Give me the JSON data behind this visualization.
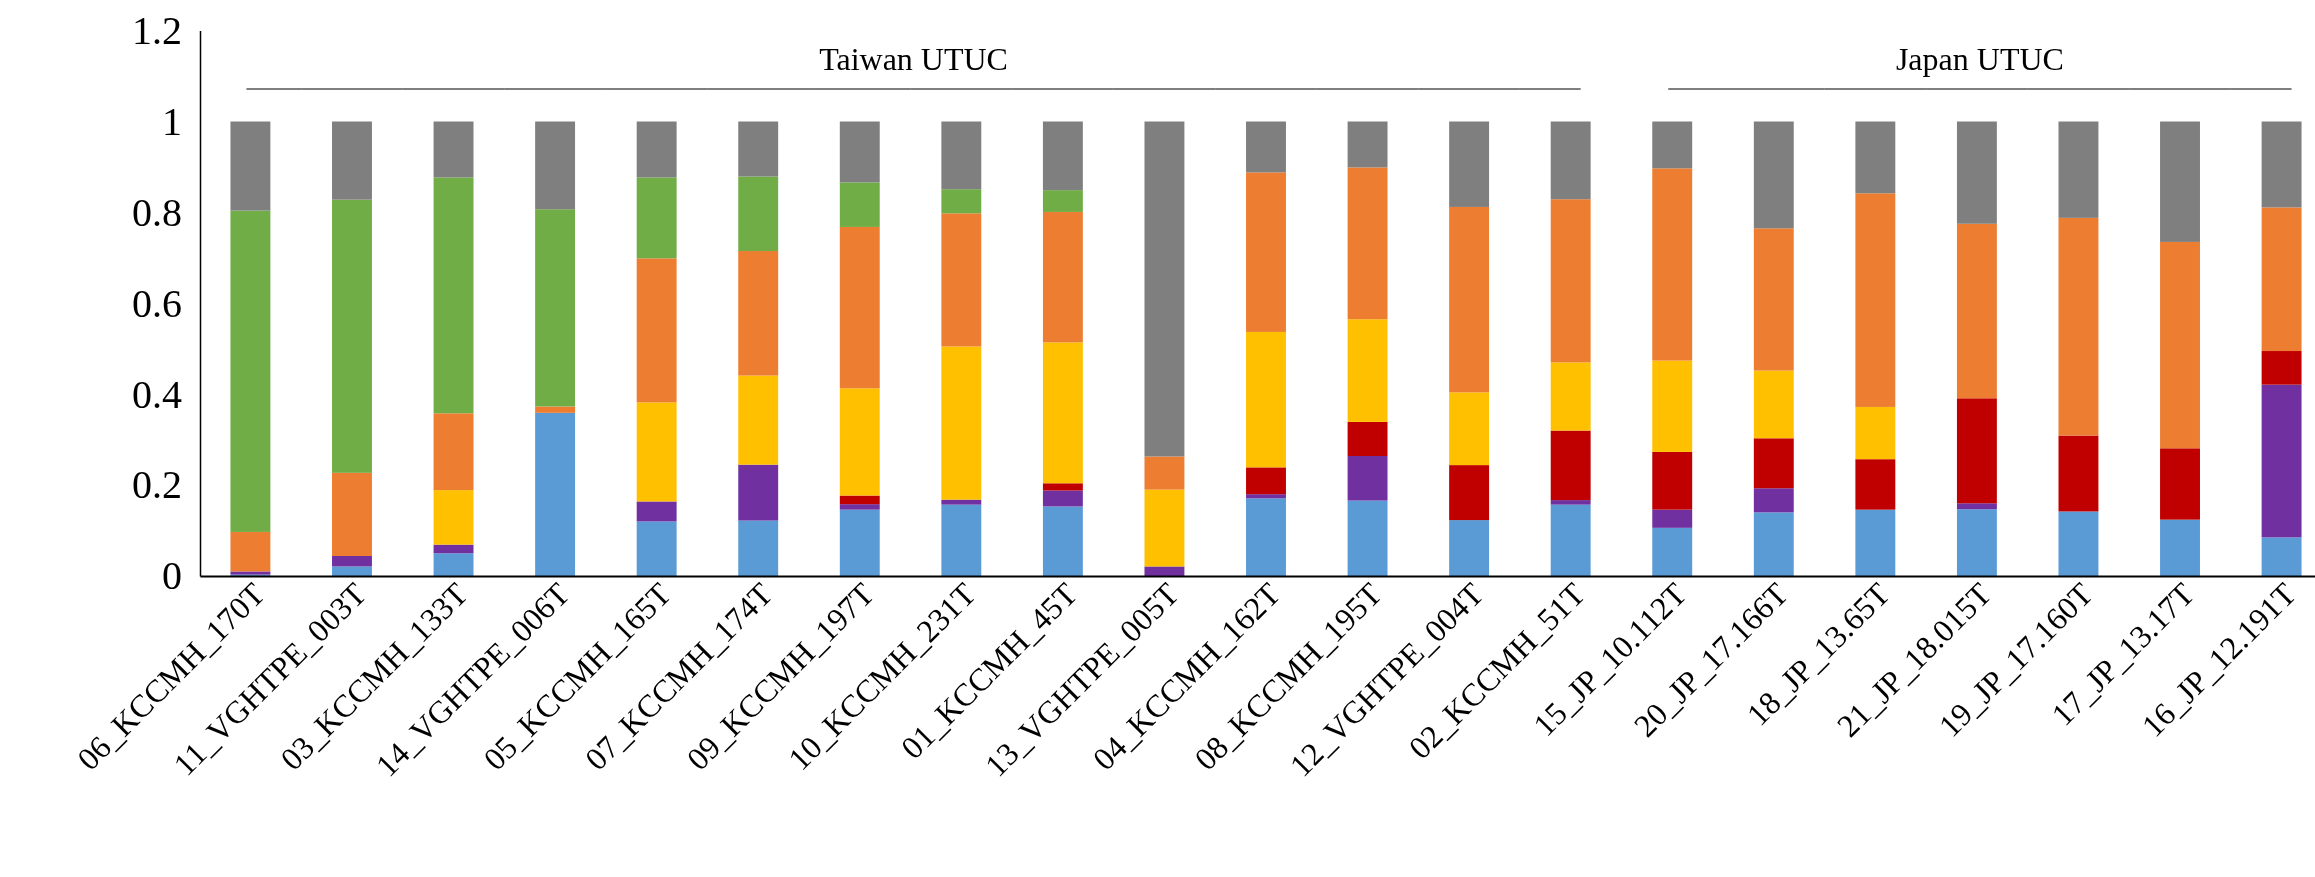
{
  "chart_data": {
    "type": "bar",
    "stacked": true,
    "categories": [
      "06_KCCMH_170T",
      "11_VGHTPE_003T",
      "03_KCCMH_133T",
      "14_VGHTPE_006T",
      "05_KCCMH_165T",
      "07_KCCMH_174T",
      "09_KCCMH_197T",
      "10_KCCMH_231T",
      "01_KCCMH_45T",
      "13_VGHTPE_005T",
      "04_KCCMH_162T",
      "08_KCCMH_195T",
      "12_VGHTPE_004T",
      "02_KCCMH_51T",
      "15_JP_10.112T",
      "20_JP_17.166T",
      "18_JP_13.65T",
      "21_JP_18.015T",
      "19_JP_17.160T",
      "17_JP_13.17T",
      "16_JP_12.191T"
    ],
    "series": [
      {
        "color": "#5b9bd5",
        "values": [
          0.003,
          0.021,
          0.05,
          0.359,
          0.12,
          0.122,
          0.146,
          0.157,
          0.153,
          0,
          0.171,
          0.166,
          0.123,
          0.157,
          0.106,
          0.14,
          0.146,
          0.147,
          0.142,
          0.124,
          0.085
        ]
      },
      {
        "color": "#7030a0",
        "values": [
          0.007,
          0.023,
          0.019,
          0,
          0.044,
          0.123,
          0.012,
          0.011,
          0.035,
          0.021,
          0.009,
          0.098,
          0,
          0.01,
          0.04,
          0.053,
          0,
          0.013,
          0,
          0,
          0.336
        ]
      },
      {
        "color": "#c00000",
        "values": [
          0,
          0,
          0,
          0,
          0,
          0,
          0.019,
          0,
          0.016,
          0,
          0.059,
          0.075,
          0.121,
          0.153,
          0.127,
          0.11,
          0.111,
          0.231,
          0.167,
          0.157,
          0.074
        ]
      },
      {
        "color": "#ffc000",
        "values": [
          0,
          0,
          0.12,
          0,
          0.218,
          0.196,
          0.236,
          0.337,
          0.31,
          0.169,
          0.298,
          0.226,
          0.16,
          0.15,
          0.201,
          0.149,
          0.115,
          0,
          0,
          0,
          0
        ]
      },
      {
        "color": "#ed7d31",
        "values": [
          0.087,
          0.183,
          0.169,
          0.014,
          0.317,
          0.274,
          0.355,
          0.293,
          0.287,
          0.073,
          0.351,
          0.334,
          0.408,
          0.359,
          0.423,
          0.313,
          0.47,
          0.384,
          0.479,
          0.454,
          0.316
        ]
      },
      {
        "color": "#70ad47",
        "values": [
          0.707,
          0.601,
          0.519,
          0.434,
          0.178,
          0.164,
          0.098,
          0.053,
          0.048,
          0,
          0,
          0,
          0,
          0,
          0,
          0,
          0,
          0,
          0,
          0,
          0
        ]
      },
      {
        "color": "#7f7f7f",
        "values": [
          0.196,
          0.172,
          0.123,
          0.193,
          0.123,
          0.121,
          0.134,
          0.149,
          0.151,
          0.737,
          0.112,
          0.101,
          0.188,
          0.171,
          0.103,
          0.235,
          0.158,
          0.225,
          0.212,
          0.265,
          0.189
        ]
      }
    ],
    "ylim": [
      0,
      1.2
    ],
    "yticks": [
      0,
      0.2,
      0.4,
      0.6,
      0.8,
      1,
      1.2
    ],
    "annotations": [
      "Taiwan UTUC",
      "Japan UTUC"
    ]
  }
}
